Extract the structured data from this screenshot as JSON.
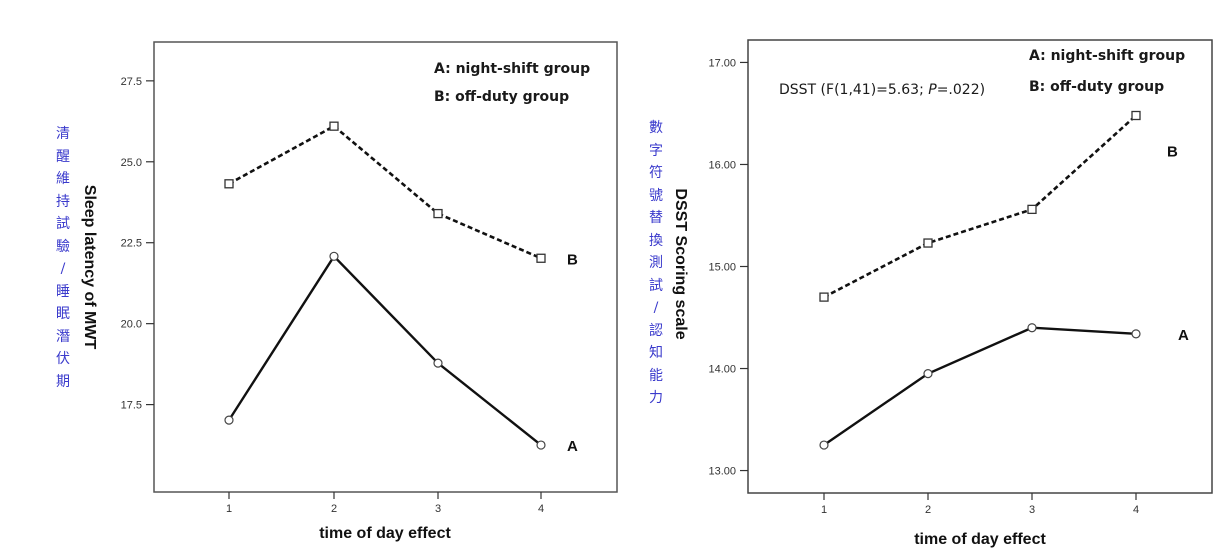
{
  "chart_data": [
    {
      "type": "line",
      "title": "",
      "xlabel": "time of day effect",
      "ylabel": "Sleep latency of MWT",
      "ylabel_chinese": "清醒維持試驗/睡眠潛伏期",
      "categories": [
        "1",
        "2",
        "3",
        "4"
      ],
      "x": [
        1,
        2,
        3,
        4
      ],
      "ylim": [
        14.8,
        28.7
      ],
      "yticks": [
        17.5,
        20.0,
        22.5,
        25.0,
        27.5
      ],
      "ytick_labels": [
        "17.5",
        "20.0",
        "22.5",
        "25.0",
        "27.5"
      ],
      "grid": false,
      "legend": {
        "placement": "top-right",
        "entries": [
          "A: night-shift group",
          "B: off-duty group"
        ]
      },
      "annotations": [],
      "series": [
        {
          "name": "A",
          "label": "A",
          "group": "night-shift group",
          "style": "solid",
          "marker": "circle",
          "values": [
            17.02,
            22.08,
            18.78,
            16.25
          ]
        },
        {
          "name": "B",
          "label": "B",
          "group": "off-duty group",
          "style": "dashed",
          "marker": "square",
          "values": [
            24.32,
            26.1,
            23.4,
            22.02
          ]
        }
      ]
    },
    {
      "type": "line",
      "title": "",
      "xlabel": "time of day effect",
      "ylabel": "DSST Scoring scale",
      "ylabel_chinese": "數字符號替換測試/認知能力",
      "categories": [
        "1",
        "2",
        "3",
        "4"
      ],
      "x": [
        1,
        2,
        3,
        4
      ],
      "ylim": [
        12.78,
        17.22
      ],
      "yticks": [
        13.0,
        14.0,
        15.0,
        16.0,
        17.0
      ],
      "ytick_labels": [
        "13.00",
        "14.00",
        "15.00",
        "16.00",
        "17.00"
      ],
      "grid": false,
      "legend": {
        "placement": "top-right",
        "entries": [
          "A: night-shift group",
          "B: off-duty group"
        ]
      },
      "annotations": [
        {
          "text_prefix": "DSST (F(1,41)=5.63; ",
          "text_italic": "P",
          "text_suffix": "=.022)"
        }
      ],
      "series": [
        {
          "name": "A",
          "label": "A",
          "group": "night-shift group",
          "style": "solid",
          "marker": "circle",
          "values": [
            13.25,
            13.95,
            14.4,
            14.34
          ]
        },
        {
          "name": "B",
          "label": "B",
          "group": "off-duty group",
          "style": "dashed",
          "marker": "square",
          "values": [
            14.7,
            15.23,
            15.56,
            16.48
          ]
        }
      ]
    }
  ]
}
